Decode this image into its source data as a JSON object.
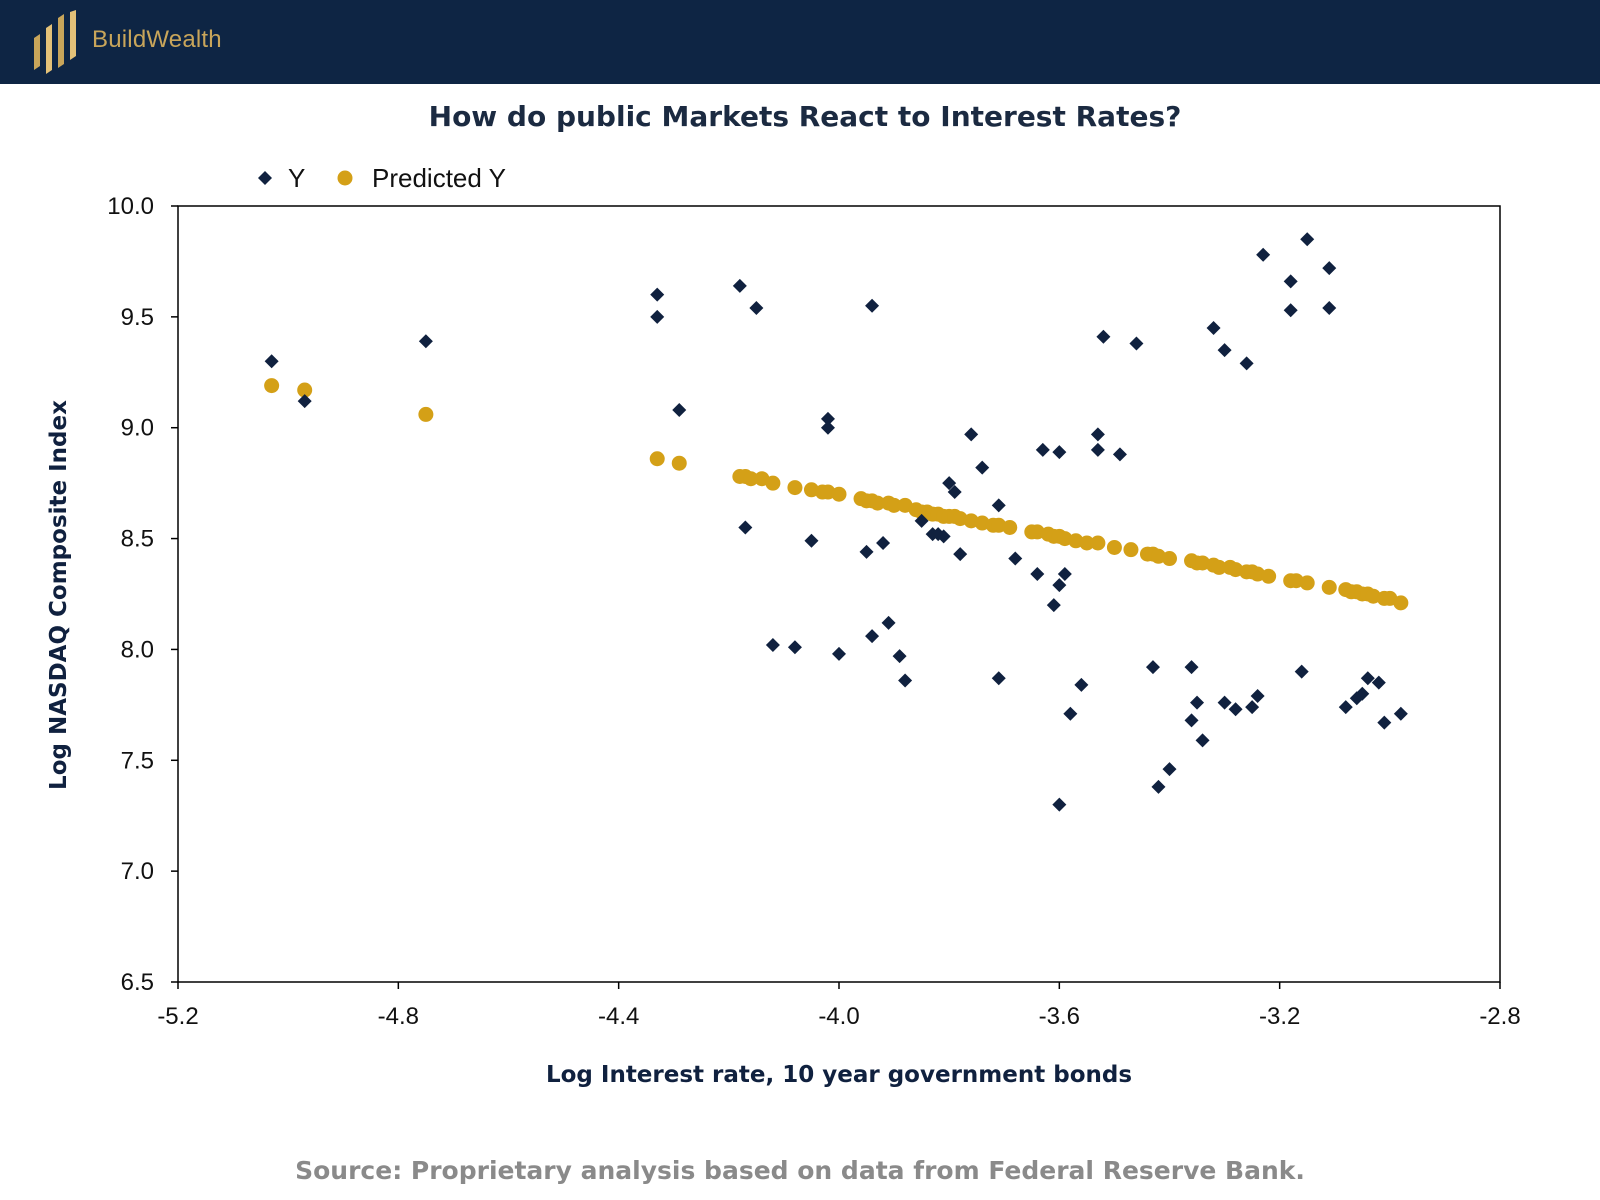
{
  "brand": {
    "name": "BuildWealth",
    "logo_icon": "bar-columns-logo-icon"
  },
  "colors": {
    "header_bg": "#0e2544",
    "gold": "#d4a017",
    "navy": "#10213f",
    "source_text": "#8a8a8a"
  },
  "footer": {
    "source": "Source: Proprietary analysis based on data from  Federal Reserve Bank."
  },
  "chart_data": {
    "type": "scatter",
    "title": "How do public Markets React to Interest Rates?",
    "xlabel": "Log Interest rate, 10 year government bonds",
    "ylabel": "Log NASDAQ Composite Index",
    "xlim": [
      -5.2,
      -2.8
    ],
    "ylim": [
      6.5,
      10.0
    ],
    "x_ticks": [
      -5.2,
      -4.8,
      -4.4,
      -4.0,
      -3.6,
      -3.2,
      -2.8
    ],
    "x_tick_labels": [
      "-5.2",
      "-4.8",
      "-4.4",
      "-4.0",
      "-3.6",
      "-3.2",
      "-2.8"
    ],
    "y_ticks": [
      6.5,
      7.0,
      7.5,
      8.0,
      8.5,
      9.0,
      9.5,
      10.0
    ],
    "y_tick_labels": [
      "6.5",
      "7.0",
      "7.5",
      "8.0",
      "8.5",
      "9.0",
      "9.5",
      "10.0"
    ],
    "grid": false,
    "legend_position": "top-left",
    "series": [
      {
        "name": "Y",
        "marker": "diamond",
        "color": "#10213f",
        "points": [
          [
            -5.03,
            9.3
          ],
          [
            -4.97,
            9.12
          ],
          [
            -4.75,
            9.39
          ],
          [
            -4.33,
            9.6
          ],
          [
            -4.33,
            9.5
          ],
          [
            -4.29,
            9.08
          ],
          [
            -4.18,
            9.64
          ],
          [
            -4.15,
            9.54
          ],
          [
            -4.17,
            8.55
          ],
          [
            -4.12,
            8.02
          ],
          [
            -4.08,
            8.01
          ],
          [
            -4.05,
            8.49
          ],
          [
            -4.02,
            9.04
          ],
          [
            -4.02,
            9.0
          ],
          [
            -4.0,
            7.98
          ],
          [
            -3.94,
            9.55
          ],
          [
            -3.95,
            8.44
          ],
          [
            -3.92,
            8.48
          ],
          [
            -3.94,
            8.06
          ],
          [
            -3.91,
            8.12
          ],
          [
            -3.89,
            7.97
          ],
          [
            -3.88,
            7.86
          ],
          [
            -3.85,
            8.58
          ],
          [
            -3.83,
            8.52
          ],
          [
            -3.82,
            8.52
          ],
          [
            -3.81,
            8.51
          ],
          [
            -3.8,
            8.75
          ],
          [
            -3.79,
            8.71
          ],
          [
            -3.78,
            8.43
          ],
          [
            -3.76,
            8.97
          ],
          [
            -3.74,
            8.82
          ],
          [
            -3.71,
            8.65
          ],
          [
            -3.68,
            8.41
          ],
          [
            -3.71,
            7.87
          ],
          [
            -3.64,
            8.34
          ],
          [
            -3.63,
            8.9
          ],
          [
            -3.61,
            8.2
          ],
          [
            -3.6,
            8.89
          ],
          [
            -3.59,
            8.34
          ],
          [
            -3.6,
            8.29
          ],
          [
            -3.58,
            7.71
          ],
          [
            -3.6,
            7.3
          ],
          [
            -3.56,
            7.84
          ],
          [
            -3.53,
            8.97
          ],
          [
            -3.53,
            8.9
          ],
          [
            -3.52,
            9.41
          ],
          [
            -3.49,
            8.88
          ],
          [
            -3.46,
            9.38
          ],
          [
            -3.43,
            7.92
          ],
          [
            -3.42,
            7.38
          ],
          [
            -3.4,
            7.46
          ],
          [
            -3.36,
            7.92
          ],
          [
            -3.36,
            7.68
          ],
          [
            -3.35,
            7.76
          ],
          [
            -3.34,
            7.59
          ],
          [
            -3.32,
            9.45
          ],
          [
            -3.3,
            9.35
          ],
          [
            -3.3,
            7.76
          ],
          [
            -3.28,
            7.73
          ],
          [
            -3.26,
            9.29
          ],
          [
            -3.25,
            7.74
          ],
          [
            -3.24,
            7.79
          ],
          [
            -3.23,
            9.78
          ],
          [
            -3.18,
            9.53
          ],
          [
            -3.18,
            9.66
          ],
          [
            -3.15,
            9.85
          ],
          [
            -3.16,
            7.9
          ],
          [
            -3.11,
            9.72
          ],
          [
            -3.11,
            9.54
          ],
          [
            -3.08,
            7.74
          ],
          [
            -3.06,
            7.78
          ],
          [
            -3.05,
            7.8
          ],
          [
            -3.04,
            7.87
          ],
          [
            -3.02,
            7.85
          ],
          [
            -3.01,
            7.67
          ],
          [
            -2.98,
            7.71
          ]
        ]
      },
      {
        "name": "Predicted Y",
        "marker": "circle",
        "color": "#d4a017",
        "points": [
          [
            -5.03,
            9.19
          ],
          [
            -4.97,
            9.17
          ],
          [
            -4.75,
            9.06
          ],
          [
            -4.33,
            8.86
          ],
          [
            -4.29,
            8.84
          ],
          [
            -4.18,
            8.78
          ],
          [
            -4.17,
            8.78
          ],
          [
            -4.16,
            8.77
          ],
          [
            -4.14,
            8.77
          ],
          [
            -4.12,
            8.75
          ],
          [
            -4.08,
            8.73
          ],
          [
            -4.05,
            8.72
          ],
          [
            -4.03,
            8.71
          ],
          [
            -4.02,
            8.71
          ],
          [
            -4.0,
            8.7
          ],
          [
            -3.96,
            8.68
          ],
          [
            -3.95,
            8.67
          ],
          [
            -3.94,
            8.67
          ],
          [
            -3.93,
            8.66
          ],
          [
            -3.91,
            8.66
          ],
          [
            -3.9,
            8.65
          ],
          [
            -3.88,
            8.65
          ],
          [
            -3.86,
            8.63
          ],
          [
            -3.85,
            8.62
          ],
          [
            -3.84,
            8.62
          ],
          [
            -3.83,
            8.61
          ],
          [
            -3.82,
            8.61
          ],
          [
            -3.81,
            8.6
          ],
          [
            -3.8,
            8.6
          ],
          [
            -3.79,
            8.6
          ],
          [
            -3.78,
            8.59
          ],
          [
            -3.76,
            8.58
          ],
          [
            -3.74,
            8.57
          ],
          [
            -3.72,
            8.56
          ],
          [
            -3.71,
            8.56
          ],
          [
            -3.69,
            8.55
          ],
          [
            -3.65,
            8.53
          ],
          [
            -3.64,
            8.53
          ],
          [
            -3.62,
            8.52
          ],
          [
            -3.61,
            8.51
          ],
          [
            -3.6,
            8.51
          ],
          [
            -3.59,
            8.5
          ],
          [
            -3.57,
            8.49
          ],
          [
            -3.55,
            8.48
          ],
          [
            -3.53,
            8.48
          ],
          [
            -3.5,
            8.46
          ],
          [
            -3.47,
            8.45
          ],
          [
            -3.44,
            8.43
          ],
          [
            -3.43,
            8.43
          ],
          [
            -3.42,
            8.42
          ],
          [
            -3.4,
            8.41
          ],
          [
            -3.36,
            8.4
          ],
          [
            -3.35,
            8.39
          ],
          [
            -3.34,
            8.39
          ],
          [
            -3.32,
            8.38
          ],
          [
            -3.31,
            8.37
          ],
          [
            -3.29,
            8.37
          ],
          [
            -3.28,
            8.36
          ],
          [
            -3.26,
            8.35
          ],
          [
            -3.25,
            8.35
          ],
          [
            -3.24,
            8.34
          ],
          [
            -3.22,
            8.33
          ],
          [
            -3.18,
            8.31
          ],
          [
            -3.17,
            8.31
          ],
          [
            -3.15,
            8.3
          ],
          [
            -3.11,
            8.28
          ],
          [
            -3.08,
            8.27
          ],
          [
            -3.07,
            8.26
          ],
          [
            -3.06,
            8.26
          ],
          [
            -3.05,
            8.25
          ],
          [
            -3.04,
            8.25
          ],
          [
            -3.03,
            8.24
          ],
          [
            -3.01,
            8.23
          ],
          [
            -3.0,
            8.23
          ],
          [
            -2.98,
            8.21
          ]
        ]
      }
    ]
  }
}
